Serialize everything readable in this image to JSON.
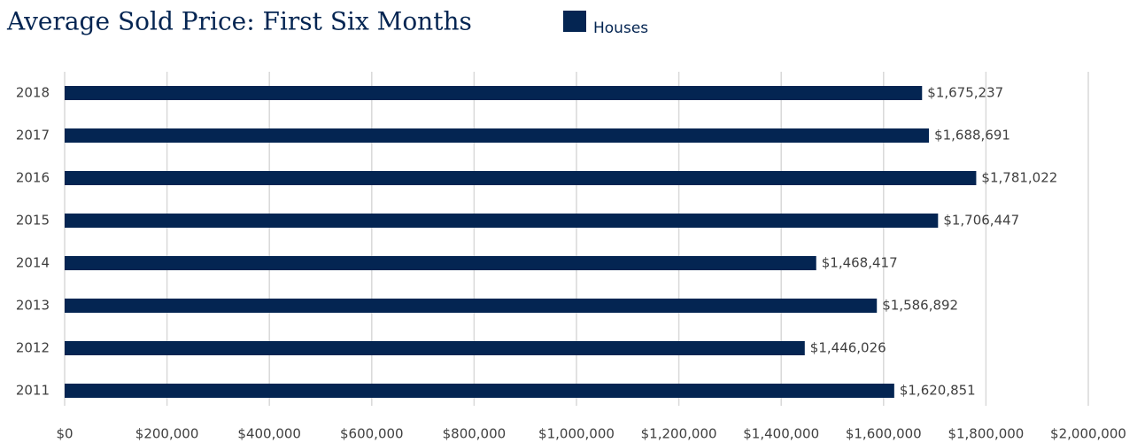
{
  "chart_data": {
    "type": "hbar",
    "title": "Average Sold Price: First Six Months",
    "categories": [
      "2018",
      "2017",
      "2016",
      "2015",
      "2014",
      "2013",
      "2012",
      "2011"
    ],
    "series": [
      {
        "name": "Houses",
        "color": "#042552",
        "values": [
          1675237,
          1688691,
          1781022,
          1706447,
          1468417,
          1586892,
          1446026,
          1620851
        ],
        "value_labels": [
          "$1,675,237",
          "$1,688,691",
          "$1,781,022",
          "$1,706,447",
          "$1,468,417",
          "$1,586,892",
          "$1,446,026",
          "$1,620,851"
        ]
      }
    ],
    "xlim": [
      0,
      2000000
    ],
    "xticks": [
      {
        "value": 0,
        "label": "$0"
      },
      {
        "value": 200000,
        "label": "$200,000"
      },
      {
        "value": 400000,
        "label": "$400,000"
      },
      {
        "value": 600000,
        "label": "$600,000"
      },
      {
        "value": 800000,
        "label": "$800,000"
      },
      {
        "value": 1000000,
        "label": "$1,000,000"
      },
      {
        "value": 1200000,
        "label": "$1,200,000"
      },
      {
        "value": 1400000,
        "label": "$1,400,000"
      },
      {
        "value": 1600000,
        "label": "$1,600,000"
      },
      {
        "value": 1800000,
        "label": "$1,800,000"
      },
      {
        "value": 2000000,
        "label": "$2,000,000"
      }
    ],
    "grid": true,
    "legend": "top"
  }
}
